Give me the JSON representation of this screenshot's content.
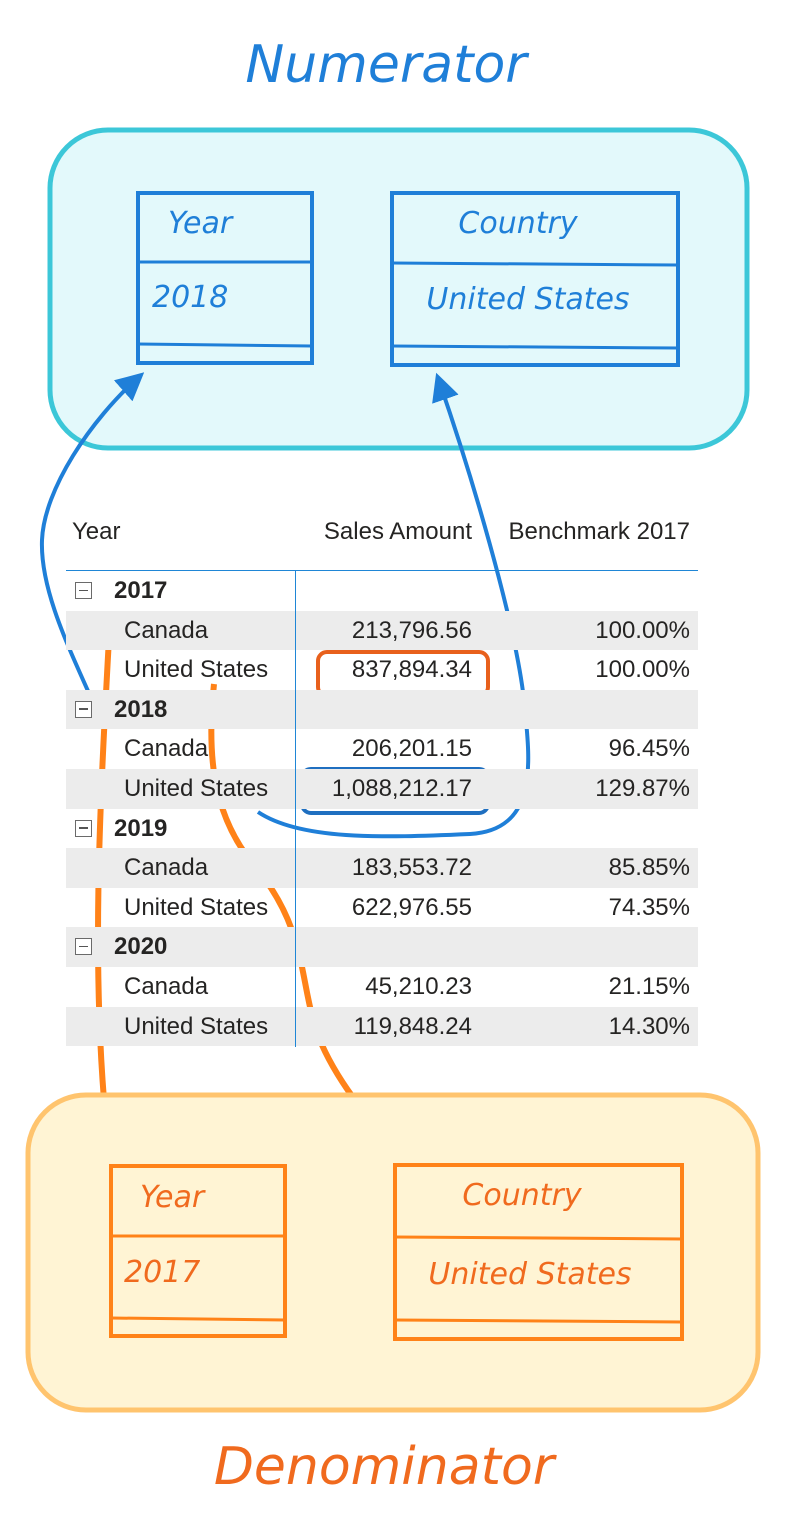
{
  "numerator": {
    "title": "Numerator",
    "year_label": "Year",
    "year_value": "2018",
    "country_label": "Country",
    "country_value": "United States"
  },
  "denominator": {
    "title": "Denominator",
    "year_label": "Year",
    "year_value": "2017",
    "country_label": "Country",
    "country_value": "United States"
  },
  "table": {
    "headers": [
      "Year",
      "Sales Amount",
      "Benchmark 2017"
    ],
    "rows": [
      {
        "type": "year",
        "label": "2017",
        "sales": "",
        "bench": "",
        "shade": false
      },
      {
        "type": "country",
        "label": "Canada",
        "sales": "213,796.56",
        "bench": "100.00%",
        "shade": true
      },
      {
        "type": "country",
        "label": "United States",
        "sales": "837,894.34",
        "bench": "100.00%",
        "shade": false
      },
      {
        "type": "year",
        "label": "2018",
        "sales": "",
        "bench": "",
        "shade": true
      },
      {
        "type": "country",
        "label": "Canada",
        "sales": "206,201.15",
        "bench": "96.45%",
        "shade": false
      },
      {
        "type": "country",
        "label": "United States",
        "sales": "1,088,212.17",
        "bench": "129.87%",
        "shade": true
      },
      {
        "type": "year",
        "label": "2019",
        "sales": "",
        "bench": "",
        "shade": false
      },
      {
        "type": "country",
        "label": "Canada",
        "sales": "183,553.72",
        "bench": "85.85%",
        "shade": true
      },
      {
        "type": "country",
        "label": "United States",
        "sales": "622,976.55",
        "bench": "74.35%",
        "shade": false
      },
      {
        "type": "year",
        "label": "2020",
        "sales": "",
        "bench": "",
        "shade": true
      },
      {
        "type": "country",
        "label": "Canada",
        "sales": "45,210.23",
        "bench": "21.15%",
        "shade": false
      },
      {
        "type": "country",
        "label": "United States",
        "sales": "119,848.24",
        "bench": "14.30%",
        "shade": true
      }
    ]
  },
  "colors": {
    "blue": "#1f7fd8",
    "blue_panel_fill": "#e3f9fb",
    "blue_panel_stroke": "#3cc7d8",
    "orange": "#ff8218",
    "orange_panel_fill": "#fff4d4",
    "orange_panel_stroke": "#ffc46e",
    "orange_title": "#f06a1e",
    "red_highlight": "#e8601c"
  }
}
